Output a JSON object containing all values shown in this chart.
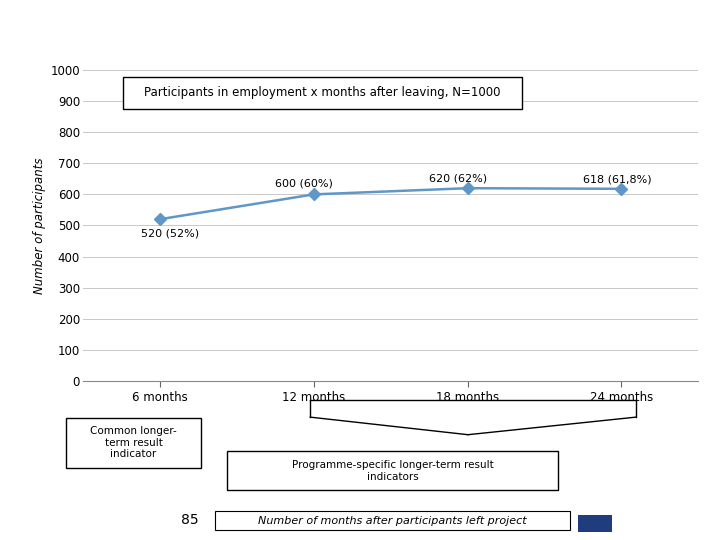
{
  "title": "Participants in employment x months after leaving, N=1000",
  "ylabel": "Number of participants",
  "x_values": [
    1,
    2,
    3,
    4
  ],
  "x_labels": [
    "6 months",
    "12 months",
    "18 months",
    "24 months"
  ],
  "y_values": [
    520,
    600,
    620,
    618
  ],
  "y_labels": [
    "520 (52%)",
    "600 (60%)",
    "620 (62%)",
    "618 (61,8%)"
  ],
  "ylim": [
    0,
    1000
  ],
  "yticks": [
    0,
    100,
    200,
    300,
    400,
    500,
    600,
    700,
    800,
    900,
    1000
  ],
  "line_color": "#6096c8",
  "header_bg": "#1565a8",
  "bg_color": "#ffffff",
  "common_indicator_text": "Common longer-\nterm result\nindicator",
  "programme_indicator_text": "Programme-specific longer-term result\nindicators",
  "bottom_label": "Number of months after participants left project",
  "slide_number": "85",
  "footer_color": "#1f3c7c"
}
